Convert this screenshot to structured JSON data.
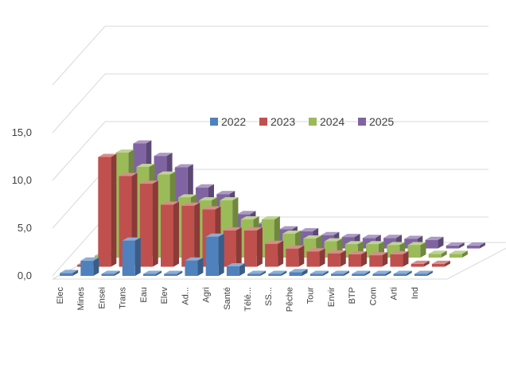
{
  "chart_data": {
    "type": "bar",
    "subtype": "3d-clustered-depth",
    "categories": [
      "Elec",
      "Mines",
      "Ensei",
      "Trans",
      "Eau",
      "Elev",
      "Ad...",
      "Agri",
      "Santé",
      "Télé...",
      "SS...",
      "Pêche",
      "Tour",
      "Envir",
      "BTP",
      "Com",
      "Arti",
      "Ind"
    ],
    "series": [
      {
        "name": "2022",
        "color": "#4f81bd",
        "values": [
          0.3,
          1.6,
          0.0,
          3.7,
          0.0,
          0.1,
          1.6,
          4.1,
          1.0,
          0.0,
          0.0,
          0.4,
          0.0,
          0.0,
          0.0,
          0.2,
          0.0,
          0.0
        ]
      },
      {
        "name": "2023",
        "color": "#c0504d",
        "values": [
          0.0,
          11.5,
          9.5,
          8.7,
          6.5,
          6.4,
          6.0,
          3.8,
          3.8,
          2.4,
          1.9,
          1.6,
          1.4,
          1.3,
          1.2,
          1.3,
          0.3,
          0.3
        ]
      },
      {
        "name": "2024",
        "color": "#9bbb59",
        "values": [
          0.0,
          11.0,
          9.5,
          8.7,
          6.3,
          6.0,
          6.0,
          4.0,
          4.0,
          2.5,
          2.0,
          1.7,
          1.4,
          1.4,
          1.3,
          1.3,
          0.4,
          0.4
        ]
      },
      {
        "name": "2025",
        "color": "#8064a2",
        "values": [
          0.0,
          11.0,
          9.7,
          8.5,
          6.4,
          5.7,
          3.6,
          2.6,
          2.0,
          1.8,
          1.4,
          1.2,
          1.1,
          1.1,
          1.0,
          0.9,
          0.3,
          0.3
        ]
      }
    ],
    "ylim": [
      0,
      15
    ],
    "yticks": [
      "0,0",
      "5,0",
      "10,0",
      "15,0"
    ],
    "legend_position": "top-right",
    "grid": true
  }
}
